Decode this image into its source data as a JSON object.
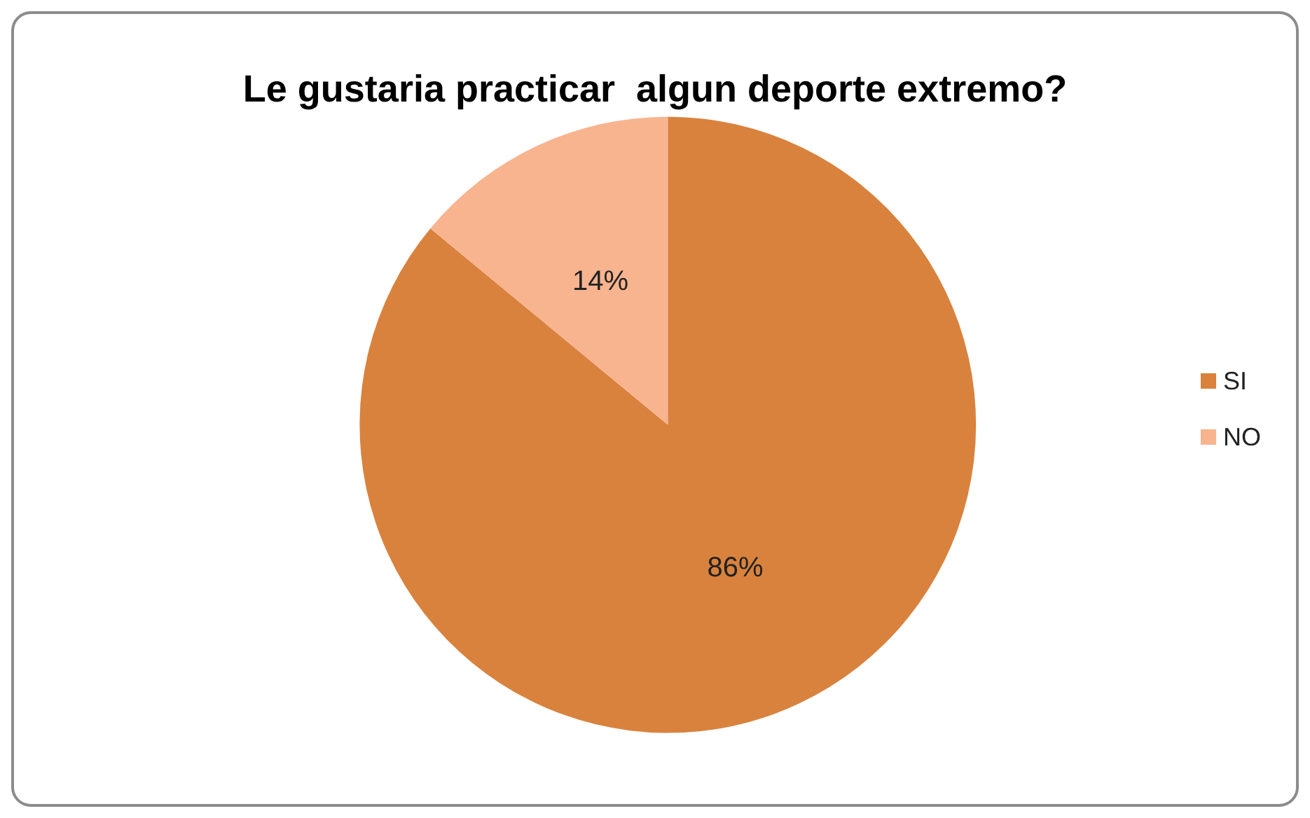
{
  "chart_data": {
    "type": "pie",
    "title": "Le gustaria practicar  algun deporte extremo?",
    "categories": [
      "SI",
      "NO"
    ],
    "values": [
      86,
      14
    ],
    "colors": [
      "#d9823d",
      "#f7b48f"
    ],
    "value_labels": [
      "86%",
      "14%"
    ],
    "legend": "right"
  }
}
